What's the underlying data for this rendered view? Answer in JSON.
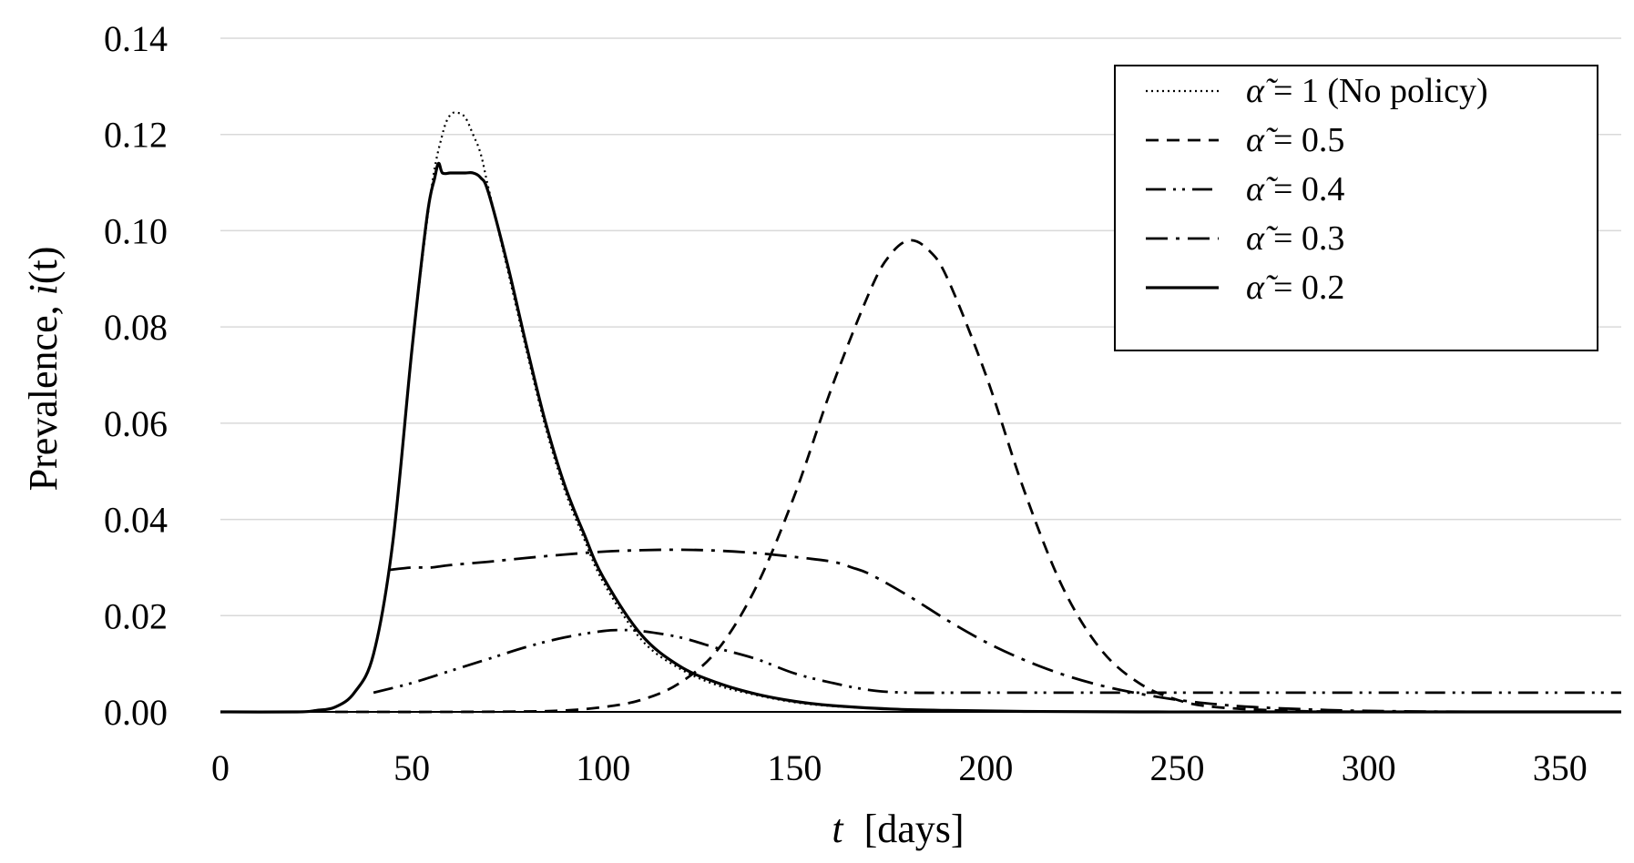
{
  "chart_data": {
    "type": "line",
    "title": "",
    "xlabel_var": "t",
    "xlabel_unit": "[days]",
    "ylabel_text": "Prevalence, ",
    "ylabel_func": "i",
    "ylabel_arg": "(t)",
    "xlim": [
      0,
      366
    ],
    "ylim": [
      0,
      0.14
    ],
    "x_ticks": [
      0,
      50,
      100,
      150,
      200,
      250,
      300,
      350
    ],
    "x_tick_labels": [
      "0",
      "50",
      "100",
      "150",
      "200",
      "250",
      "300",
      "350"
    ],
    "y_ticks": [
      0,
      0.02,
      0.04,
      0.06,
      0.08,
      0.1,
      0.12,
      0.14
    ],
    "y_tick_labels": [
      "0.00",
      "0.02",
      "0.04",
      "0.06",
      "0.08",
      "0.10",
      "0.12",
      "0.14"
    ],
    "grid": "horizontal",
    "legend_position": "top-right",
    "legend_symbol": "α̃",
    "series": [
      {
        "name": "α̃ = 1 (No policy)",
        "legend_value": "= 1 (No policy)",
        "style": "dotted",
        "x": [
          0,
          20,
          25,
          30,
          35,
          40,
          45,
          50,
          55,
          58,
          60,
          62,
          64,
          66,
          68,
          70,
          75,
          80,
          85,
          90,
          95,
          100,
          110,
          120,
          130,
          140,
          150,
          160,
          175,
          190,
          210,
          240,
          280,
          366
        ],
        "y": [
          0,
          0,
          0.0003,
          0.001,
          0.004,
          0.012,
          0.035,
          0.075,
          0.108,
          0.12,
          0.124,
          0.1245,
          0.1235,
          0.12,
          0.116,
          0.109,
          0.092,
          0.075,
          0.059,
          0.046,
          0.036,
          0.027,
          0.015,
          0.009,
          0.0055,
          0.0035,
          0.002,
          0.0012,
          0.0006,
          0.0003,
          0.0001,
          0,
          0,
          0
        ]
      },
      {
        "name": "α̃ = 0.5",
        "legend_value": "= 0.5",
        "style": "dashed",
        "x": [
          30,
          60,
          80,
          90,
          100,
          110,
          120,
          130,
          140,
          150,
          160,
          170,
          175,
          180,
          185,
          190,
          200,
          210,
          220,
          230,
          240,
          250,
          260,
          280,
          300
        ],
        "y": [
          0,
          0,
          0.0001,
          0.0003,
          0.001,
          0.0025,
          0.006,
          0.013,
          0.026,
          0.045,
          0.068,
          0.088,
          0.095,
          0.098,
          0.096,
          0.09,
          0.07,
          0.046,
          0.026,
          0.013,
          0.006,
          0.0025,
          0.001,
          0.0002,
          0
        ]
      },
      {
        "name": "α̃ = 0.4",
        "legend_value": "= 0.4",
        "style": "dash-dot-dot",
        "x": [
          40,
          50,
          60,
          70,
          80,
          90,
          100,
          105,
          110,
          120,
          130,
          140,
          150,
          160,
          170,
          180,
          200,
          250,
          300,
          366
        ],
        "y": [
          0.004,
          0.006,
          0.0085,
          0.011,
          0.0135,
          0.0155,
          0.0168,
          0.017,
          0.0168,
          0.0155,
          0.0132,
          0.011,
          0.008,
          0.006,
          0.0045,
          0.004,
          0.004,
          0.004,
          0.004,
          0.004
        ]
      },
      {
        "name": "α̃ = 0.3",
        "legend_value": "= 0.3",
        "style": "dash-dot",
        "x": [
          44,
          50,
          55,
          60,
          70,
          80,
          90,
          100,
          110,
          120,
          130,
          140,
          150,
          160,
          165,
          170,
          180,
          190,
          200,
          210,
          220,
          230,
          240,
          250,
          260,
          270,
          285,
          300,
          330,
          366
        ],
        "y": [
          0.0295,
          0.03,
          0.03,
          0.0305,
          0.0312,
          0.032,
          0.0327,
          0.0333,
          0.0336,
          0.0337,
          0.0335,
          0.033,
          0.0322,
          0.0312,
          0.03,
          0.0285,
          0.024,
          0.019,
          0.0145,
          0.0108,
          0.0078,
          0.0055,
          0.0038,
          0.0025,
          0.0016,
          0.001,
          0.0005,
          0.0002,
          0,
          0
        ]
      },
      {
        "name": "α̃ = 0.2",
        "legend_value": "= 0.2",
        "style": "solid",
        "x": [
          0,
          20,
          25,
          30,
          35,
          40,
          45,
          50,
          54,
          56,
          57,
          58,
          60,
          62,
          64,
          66,
          68,
          70,
          75,
          80,
          85,
          90,
          95,
          100,
          110,
          120,
          130,
          140,
          150,
          160,
          175,
          190,
          210,
          240,
          280,
          366
        ],
        "y": [
          0,
          0,
          0.0003,
          0.001,
          0.004,
          0.012,
          0.035,
          0.075,
          0.103,
          0.111,
          0.114,
          0.112,
          0.112,
          0.112,
          0.112,
          0.112,
          0.111,
          0.108,
          0.093,
          0.076,
          0.06,
          0.047,
          0.037,
          0.028,
          0.016,
          0.0095,
          0.006,
          0.0037,
          0.0022,
          0.0013,
          0.0006,
          0.0003,
          0.0001,
          0,
          0,
          0
        ]
      }
    ]
  }
}
